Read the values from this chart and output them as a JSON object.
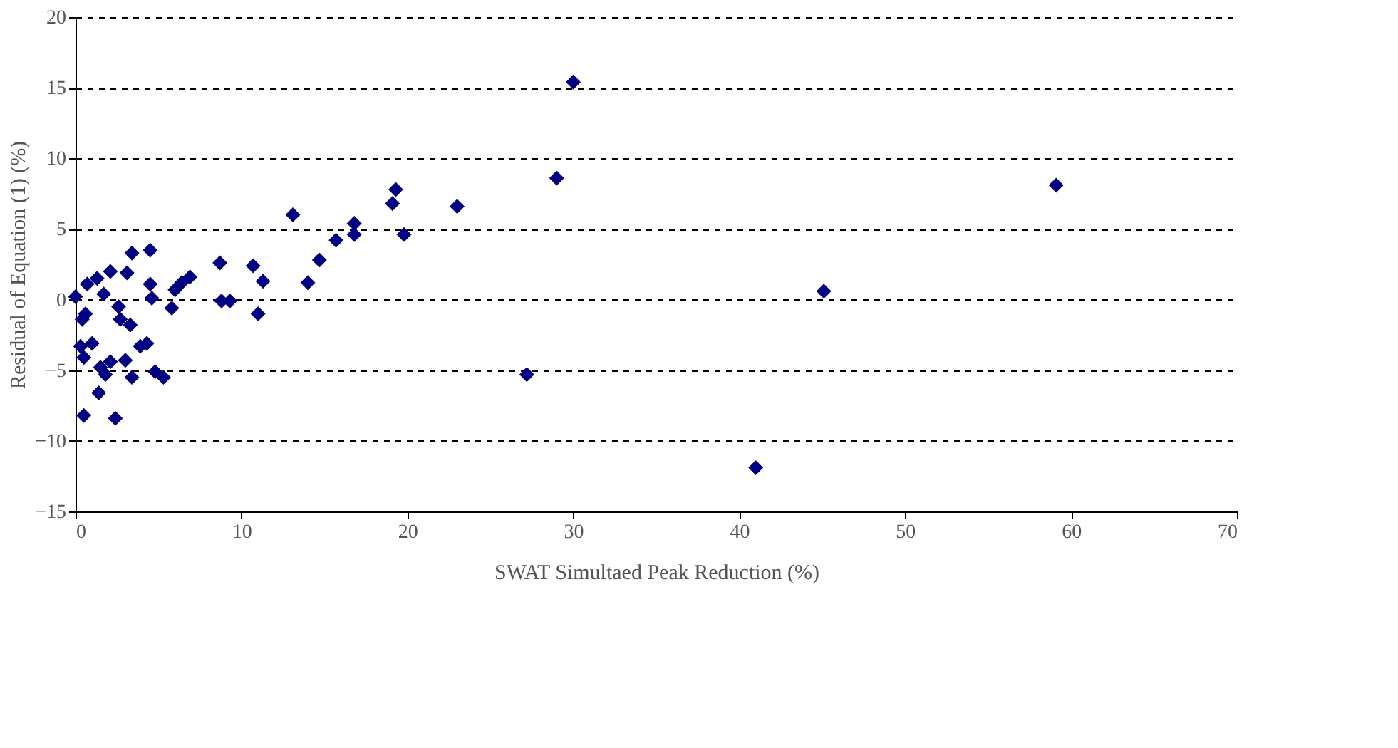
{
  "chart_data": {
    "type": "scatter",
    "xlabel": "SWAT Simultaed Peak Reduction (%)",
    "ylabel": "Residual of Equation (1) (%)",
    "xlim": [
      0,
      70
    ],
    "xticks": [
      0,
      10,
      20,
      30,
      40,
      50,
      60,
      70
    ],
    "ylim": [
      -15,
      20
    ],
    "yticks": [
      -15,
      -10,
      -5,
      0,
      5,
      10,
      15,
      20
    ],
    "grid": "y",
    "marker": "diamond",
    "series": [
      {
        "color": "#000080",
        "x": [
          0,
          0.4,
          0.6,
          0.3,
          0.5,
          0.7,
          1.0,
          1.3,
          1.4,
          0.5,
          1.5,
          1.8,
          1.7,
          2.1,
          2.1,
          2.4,
          2.6,
          2.7,
          3.1,
          3.0,
          3.3,
          3.4,
          3.4,
          3.9,
          4.3,
          4.5,
          4.5,
          4.6,
          4.8,
          5.3,
          5.8,
          6.0,
          6.4,
          6.9,
          8.7,
          8.8,
          9.3,
          10.7,
          11.0,
          11.3,
          13.1,
          14.0,
          14.7,
          15.7,
          16.8,
          16.8,
          19.1,
          19.3,
          19.8,
          23.0,
          27.2,
          29.0,
          30.0,
          41.0,
          45.1,
          59.1
        ],
        "values": [
          0.2,
          -1.4,
          -1.0,
          -3.3,
          -4.1,
          1.1,
          -3.1,
          1.5,
          -6.6,
          -8.2,
          -4.8,
          -5.3,
          0.4,
          2.0,
          -4.4,
          -8.4,
          -0.5,
          -1.4,
          1.9,
          -4.3,
          -1.8,
          -5.5,
          3.3,
          -3.3,
          -3.1,
          3.5,
          1.1,
          0.1,
          -5.1,
          -5.5,
          -0.6,
          0.7,
          1.2,
          1.6,
          2.6,
          -0.1,
          -0.1,
          2.4,
          -1.0,
          1.3,
          6.0,
          1.2,
          2.8,
          4.2,
          5.4,
          4.6,
          6.8,
          7.8,
          4.6,
          6.6,
          -5.3,
          8.6,
          15.4,
          -11.9,
          0.6,
          8.1
        ]
      }
    ]
  }
}
